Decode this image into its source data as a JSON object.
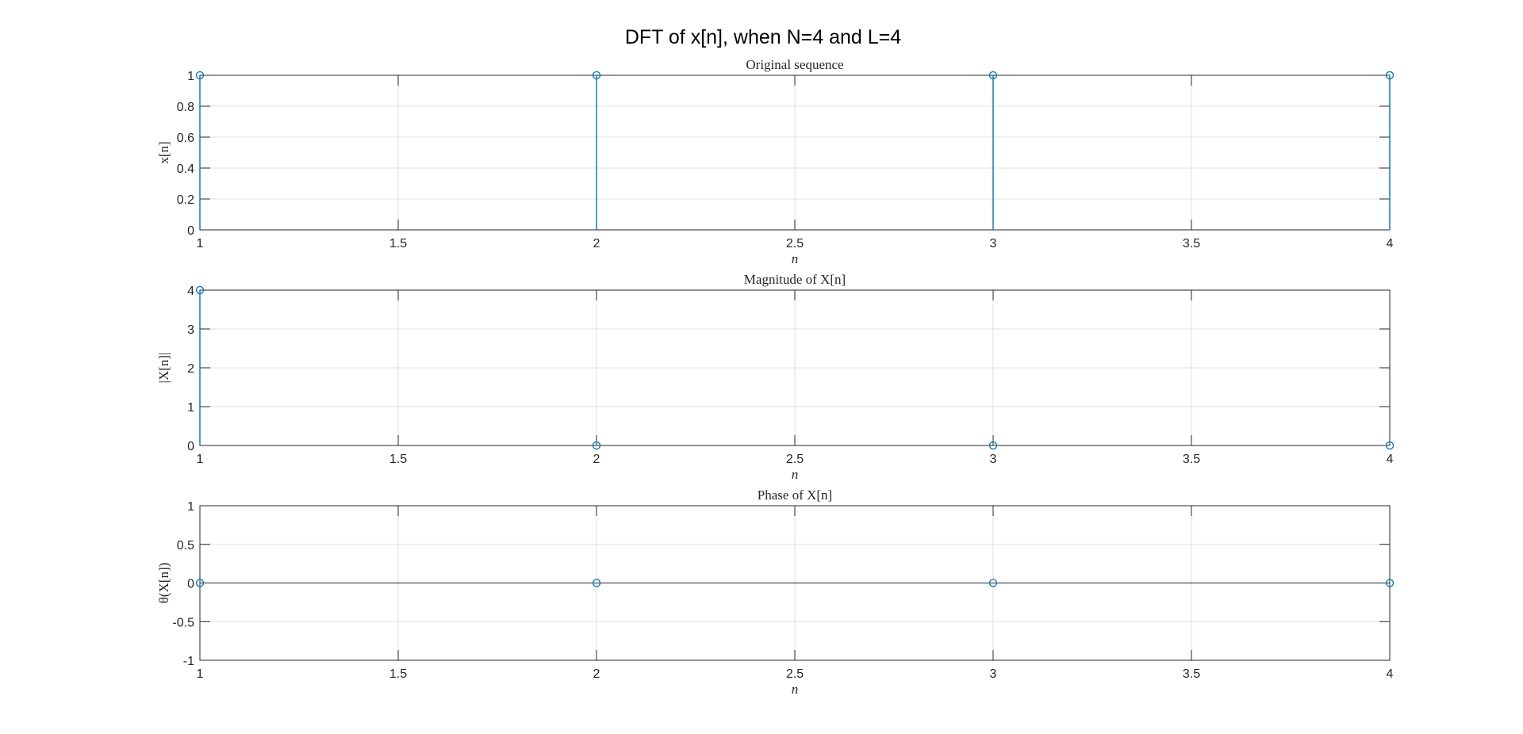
{
  "figure": {
    "title": "DFT of x[n], when N=4 and L=4",
    "stem_color": "#0072BD"
  },
  "chart_data": [
    {
      "type": "stem",
      "title": "Original sequence",
      "xlabel": "n",
      "ylabel": "x[n]",
      "x": [
        1,
        2,
        3,
        4
      ],
      "y": [
        1,
        1,
        1,
        1
      ],
      "xlim": [
        1,
        4
      ],
      "ylim": [
        0,
        1
      ],
      "xticks": [
        1,
        1.5,
        2,
        2.5,
        3,
        3.5,
        4
      ],
      "yticks": [
        0,
        0.2,
        0.4,
        0.6,
        0.8,
        1
      ],
      "xtick_labels": [
        "1",
        "1.5",
        "2",
        "2.5",
        "3",
        "3.5",
        "4"
      ],
      "ytick_labels": [
        "0",
        "0.2",
        "0.4",
        "0.6",
        "0.8",
        "1"
      ],
      "grid": true
    },
    {
      "type": "stem",
      "title": "Magnitude of X[n]",
      "xlabel": "n",
      "ylabel": "|X[n]|",
      "x": [
        1,
        2,
        3,
        4
      ],
      "y": [
        4,
        0,
        0,
        0
      ],
      "xlim": [
        1,
        4
      ],
      "ylim": [
        0,
        4
      ],
      "xticks": [
        1,
        1.5,
        2,
        2.5,
        3,
        3.5,
        4
      ],
      "yticks": [
        0,
        1,
        2,
        3,
        4
      ],
      "xtick_labels": [
        "1",
        "1.5",
        "2",
        "2.5",
        "3",
        "3.5",
        "4"
      ],
      "ytick_labels": [
        "0",
        "1",
        "2",
        "3",
        "4"
      ],
      "grid": true
    },
    {
      "type": "stem",
      "title": "Phase of X[n]",
      "xlabel": "n",
      "ylabel": "θ(X[n])",
      "x": [
        1,
        2,
        3,
        4
      ],
      "y": [
        0,
        0,
        0,
        0
      ],
      "xlim": [
        1,
        4
      ],
      "ylim": [
        -1,
        1
      ],
      "xticks": [
        1,
        1.5,
        2,
        2.5,
        3,
        3.5,
        4
      ],
      "yticks": [
        -1,
        -0.5,
        0,
        0.5,
        1
      ],
      "xtick_labels": [
        "1",
        "1.5",
        "2",
        "2.5",
        "3",
        "3.5",
        "4"
      ],
      "ytick_labels": [
        "-1",
        "-0.5",
        "0",
        "0.5",
        "1"
      ],
      "grid": true
    }
  ]
}
